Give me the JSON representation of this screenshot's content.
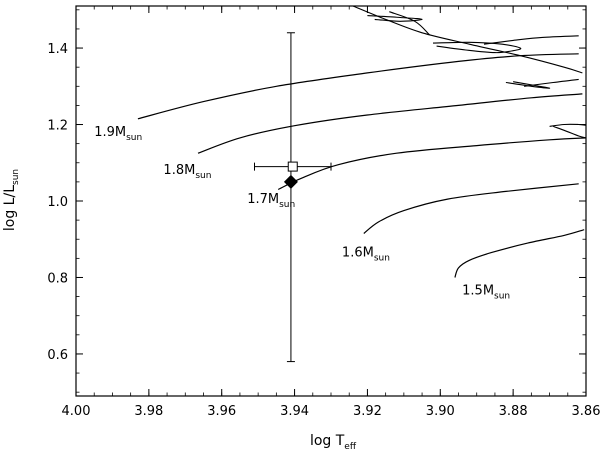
{
  "chart_data": {
    "type": "line",
    "title": "",
    "xlabel": {
      "main": "log T",
      "sub": "eff"
    },
    "ylabel": {
      "main": "log L/L",
      "sub": "sun"
    },
    "xlim": [
      4.0,
      3.86
    ],
    "x_reversed": true,
    "ylim": [
      0.49,
      1.51
    ],
    "x_ticks": [
      4.0,
      3.98,
      3.96,
      3.94,
      3.92,
      3.9,
      3.88,
      3.86
    ],
    "x_tick_labels": [
      "4.00",
      "3.98",
      "3.96",
      "3.94",
      "3.92",
      "3.90",
      "3.88",
      "3.86"
    ],
    "y_ticks": [
      0.6,
      0.8,
      1.0,
      1.2,
      1.4
    ],
    "y_tick_labels": [
      "0.6",
      "0.8",
      "1.0",
      "1.2",
      "1.4"
    ],
    "grid": false,
    "series": [
      {
        "name": "1.5M_sun",
        "label_main": "1.5M",
        "label_sub": "sun",
        "label_at": [
          3.894,
          0.755
        ],
        "points": [
          [
            3.896,
            0.8
          ],
          [
            3.895,
            0.825
          ],
          [
            3.892,
            0.845
          ],
          [
            3.886,
            0.865
          ],
          [
            3.876,
            0.89
          ],
          [
            3.866,
            0.91
          ],
          [
            3.8605,
            0.925
          ]
        ]
      },
      {
        "name": "1.6M_sun",
        "label_main": "1.6M",
        "label_sub": "sun",
        "label_at": [
          3.927,
          0.855
        ],
        "points": [
          [
            3.921,
            0.915
          ],
          [
            3.917,
            0.945
          ],
          [
            3.91,
            0.975
          ],
          [
            3.898,
            1.005
          ],
          [
            3.882,
            1.025
          ],
          [
            3.862,
            1.045
          ]
        ]
      },
      {
        "name": "1.7M_sun",
        "label_main": "1.7M",
        "label_sub": "sun",
        "label_at": [
          3.953,
          0.995
        ],
        "points": [
          [
            3.9445,
            1.03
          ],
          [
            3.938,
            1.06
          ],
          [
            3.928,
            1.095
          ],
          [
            3.912,
            1.125
          ],
          [
            3.89,
            1.145
          ],
          [
            3.87,
            1.16
          ],
          [
            3.86,
            1.165
          ]
        ]
      },
      {
        "name": "1.8M_sun",
        "label_main": "1.8M",
        "label_sub": "sun",
        "label_at": [
          3.976,
          1.07
        ],
        "points": [
          [
            3.9665,
            1.125
          ],
          [
            3.955,
            1.165
          ],
          [
            3.94,
            1.197
          ],
          [
            3.92,
            1.225
          ],
          [
            3.895,
            1.25
          ],
          [
            3.875,
            1.27
          ],
          [
            3.861,
            1.28
          ]
        ]
      },
      {
        "name": "1.9M_sun",
        "label_main": "1.9M",
        "label_sub": "sun",
        "label_at": [
          3.995,
          1.17
        ],
        "points": [
          [
            3.983,
            1.215
          ],
          [
            3.965,
            1.26
          ],
          [
            3.945,
            1.3
          ],
          [
            3.92,
            1.335
          ],
          [
            3.895,
            1.365
          ],
          [
            3.878,
            1.38
          ],
          [
            3.862,
            1.385
          ]
        ]
      }
    ],
    "extra_curves": [
      [
        [
          3.924,
          1.51
        ],
        [
          3.915,
          1.475
        ],
        [
          3.905,
          1.44
        ],
        [
          3.892,
          1.41
        ],
        [
          3.878,
          1.38
        ],
        [
          3.866,
          1.35
        ],
        [
          3.861,
          1.335
        ]
      ],
      [
        [
          3.914,
          1.495
        ],
        [
          3.907,
          1.47
        ],
        [
          3.903,
          1.435
        ]
      ],
      [
        [
          3.92,
          1.485
        ],
        [
          3.911,
          1.48
        ],
        [
          3.905,
          1.475
        ],
        [
          3.911,
          1.47
        ],
        [
          3.918,
          1.475
        ]
      ],
      [
        [
          3.901,
          1.405
        ],
        [
          3.893,
          1.395
        ],
        [
          3.885,
          1.388
        ],
        [
          3.88,
          1.393
        ],
        [
          3.878,
          1.4
        ],
        [
          3.883,
          1.41
        ],
        [
          3.892,
          1.415
        ],
        [
          3.902,
          1.413
        ]
      ],
      [
        [
          3.888,
          1.41
        ],
        [
          3.88,
          1.42
        ],
        [
          3.872,
          1.428
        ],
        [
          3.862,
          1.432
        ]
      ],
      [
        [
          3.882,
          1.31
        ],
        [
          3.875,
          1.3
        ],
        [
          3.87,
          1.295
        ],
        [
          3.874,
          1.302
        ],
        [
          3.88,
          1.312
        ]
      ],
      [
        [
          3.877,
          1.3
        ],
        [
          3.869,
          1.31
        ],
        [
          3.862,
          1.318
        ]
      ],
      [
        [
          3.869,
          1.195
        ],
        [
          3.866,
          1.185
        ],
        [
          3.862,
          1.17
        ],
        [
          3.86,
          1.165
        ]
      ],
      [
        [
          3.87,
          1.195
        ],
        [
          3.866,
          1.2
        ],
        [
          3.862,
          1.2
        ],
        [
          3.86,
          1.198
        ]
      ]
    ],
    "observed_point": {
      "marker": "filled-diamond",
      "x": 3.941,
      "y": 1.05,
      "yerr_low": 0.58,
      "yerr_high": 1.44
    },
    "model_point": {
      "marker": "open-square",
      "x": 3.9405,
      "y": 1.09,
      "xerr_low": 3.951,
      "xerr_high": 3.93
    }
  }
}
